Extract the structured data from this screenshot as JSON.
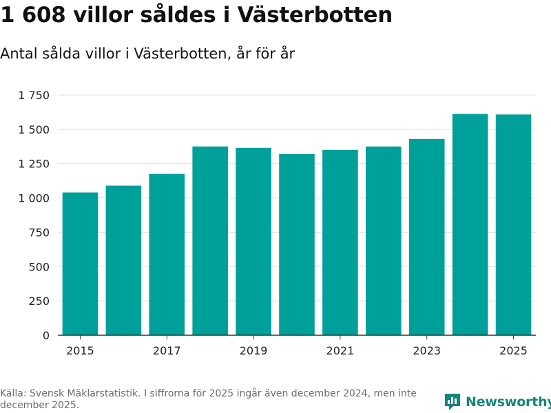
{
  "title": "1 608 villor såldes i Västerbotten",
  "subtitle": "Antal sålda villor i Västerbotten, år för år",
  "source": "Källa: Svensk Mäklarstatistik. I siffrorna för 2025 ingår även december 2024, men inte december 2025.",
  "brand": {
    "name": "Newsworthy",
    "color": "#14857c",
    "icon": "newsworthy-logo-icon"
  },
  "colors": {
    "bar": "#00a09a",
    "grid": "#dddddd",
    "axis": "#333333"
  },
  "chart_data": {
    "type": "bar",
    "title": "1 608 villor såldes i Västerbotten",
    "subtitle": "Antal sålda villor i Västerbotten, år för år",
    "xlabel": "",
    "ylabel": "",
    "categories": [
      "2015",
      "2016",
      "2017",
      "2018",
      "2019",
      "2020",
      "2021",
      "2022",
      "2023",
      "2024",
      "2025"
    ],
    "values": [
      1040,
      1090,
      1175,
      1375,
      1365,
      1320,
      1350,
      1375,
      1430,
      1612,
      1608
    ],
    "x_tick_labels": [
      "2015",
      "2017",
      "2019",
      "2021",
      "2023",
      "2025"
    ],
    "y_ticks": [
      0,
      250,
      500,
      750,
      1000,
      1250,
      1500,
      1750
    ],
    "y_tick_labels": [
      "0",
      "250",
      "500",
      "750",
      "1 000",
      "1 250",
      "1 500",
      "1 750"
    ],
    "ylim": [
      0,
      1750
    ],
    "grid": true,
    "legend": "none"
  }
}
